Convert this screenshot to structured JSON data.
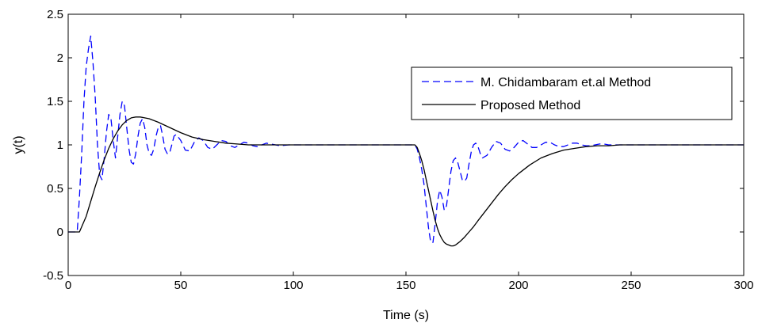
{
  "chart_data": {
    "type": "line",
    "title": "",
    "xlabel": "Time (s)",
    "ylabel": "y(t)",
    "xlim": [
      0,
      300
    ],
    "ylim": [
      -0.5,
      2.5
    ],
    "xticks": [
      0,
      50,
      100,
      150,
      200,
      250,
      300
    ],
    "yticks": [
      -0.5,
      0,
      0.5,
      1,
      1.5,
      2,
      2.5
    ],
    "xtick_labels": [
      "0",
      "50",
      "100",
      "150",
      "200",
      "250",
      "300"
    ],
    "ytick_labels": [
      "-0.5",
      "0",
      "0.5",
      "1",
      "1.5",
      "2",
      "2.5"
    ],
    "grid": false,
    "legend_position": "upper-right",
    "series": [
      {
        "name": "M. Chidambaram et.al Method",
        "color": "#0000ff",
        "style": "dashed",
        "x": [
          0,
          4,
          5,
          6,
          7,
          8,
          9,
          10,
          11,
          12,
          13,
          14,
          15,
          16,
          17,
          18,
          19,
          20,
          21,
          22,
          23,
          24,
          25,
          26,
          27,
          28,
          29,
          30,
          31,
          32,
          33,
          34,
          35,
          36,
          37,
          38,
          39,
          40,
          41,
          42,
          43,
          44,
          45,
          46,
          47,
          48,
          50,
          52,
          54,
          56,
          58,
          60,
          62,
          64,
          66,
          68,
          70,
          72,
          74,
          76,
          78,
          80,
          82,
          84,
          86,
          88,
          90,
          94,
          98,
          100,
          110,
          130,
          150,
          154,
          155,
          156,
          157,
          158,
          159,
          160,
          161,
          162,
          163,
          164,
          165,
          166,
          167,
          168,
          169,
          170,
          171,
          172,
          173,
          174,
          175,
          176,
          177,
          178,
          179,
          180,
          181,
          182,
          183,
          184,
          186,
          188,
          190,
          192,
          194,
          196,
          198,
          200,
          202,
          204,
          206,
          208,
          210,
          212,
          214,
          216,
          218,
          220,
          222,
          224,
          226,
          228,
          230,
          232,
          234,
          236,
          238,
          240,
          245,
          250,
          300
        ],
        "y": [
          0,
          0,
          0.4,
          0.9,
          1.5,
          1.9,
          2.1,
          2.25,
          1.95,
          1.55,
          1.0,
          0.65,
          0.6,
          0.85,
          1.15,
          1.35,
          1.3,
          1.05,
          0.85,
          1.1,
          1.35,
          1.5,
          1.45,
          1.2,
          0.95,
          0.8,
          0.78,
          0.9,
          1.1,
          1.25,
          1.3,
          1.2,
          1.0,
          0.9,
          0.88,
          0.95,
          1.1,
          1.2,
          1.22,
          1.1,
          0.95,
          0.9,
          0.9,
          1.0,
          1.1,
          1.12,
          1.05,
          0.94,
          0.93,
          1.03,
          1.08,
          1.05,
          0.97,
          0.95,
          1.0,
          1.05,
          1.04,
          0.99,
          0.97,
          1.0,
          1.03,
          1.02,
          0.99,
          0.98,
          1.0,
          1.02,
          1.01,
          0.99,
          1.0,
          1.0,
          1.0,
          1.0,
          1.0,
          1.0,
          0.95,
          0.85,
          0.72,
          0.55,
          0.3,
          0.05,
          -0.12,
          -0.12,
          0.1,
          0.35,
          0.48,
          0.4,
          0.25,
          0.3,
          0.5,
          0.7,
          0.82,
          0.85,
          0.8,
          0.7,
          0.6,
          0.58,
          0.62,
          0.78,
          0.92,
          1.0,
          1.02,
          0.98,
          0.9,
          0.85,
          0.88,
          0.97,
          1.04,
          1.02,
          0.95,
          0.93,
          0.97,
          1.03,
          1.05,
          1.01,
          0.97,
          0.97,
          1.0,
          1.03,
          1.03,
          1.0,
          0.98,
          0.98,
          1.0,
          1.02,
          1.02,
          1.0,
          0.99,
          0.99,
          1.0,
          1.01,
          1.01,
          1.0,
          1.0,
          1.0,
          1.0
        ]
      },
      {
        "name": "Proposed Method",
        "color": "#000000",
        "style": "solid",
        "x": [
          0,
          5,
          8,
          10,
          12,
          14,
          16,
          18,
          20,
          22,
          24,
          26,
          28,
          30,
          32,
          34,
          36,
          40,
          45,
          50,
          55,
          60,
          65,
          70,
          75,
          80,
          90,
          100,
          110,
          130,
          150,
          154,
          155,
          156,
          157,
          158,
          159,
          160,
          161,
          162,
          163,
          164,
          165,
          166,
          167,
          168,
          169,
          170,
          171,
          172,
          173,
          174,
          176,
          178,
          180,
          182,
          185,
          188,
          191,
          194,
          197,
          200,
          205,
          210,
          215,
          220,
          225,
          230,
          235,
          240,
          245,
          250,
          260,
          300
        ],
        "y": [
          0,
          0,
          0.18,
          0.35,
          0.52,
          0.68,
          0.83,
          0.96,
          1.07,
          1.16,
          1.23,
          1.28,
          1.31,
          1.32,
          1.32,
          1.31,
          1.3,
          1.26,
          1.2,
          1.14,
          1.09,
          1.06,
          1.04,
          1.02,
          1.01,
          1.0,
          1.0,
          1.0,
          1.0,
          1.0,
          1.0,
          1.0,
          0.97,
          0.9,
          0.82,
          0.72,
          0.6,
          0.48,
          0.36,
          0.24,
          0.13,
          0.04,
          -0.03,
          -0.08,
          -0.12,
          -0.14,
          -0.15,
          -0.16,
          -0.16,
          -0.15,
          -0.13,
          -0.11,
          -0.06,
          0.0,
          0.06,
          0.13,
          0.23,
          0.33,
          0.43,
          0.52,
          0.6,
          0.67,
          0.77,
          0.85,
          0.9,
          0.94,
          0.96,
          0.98,
          0.99,
          0.99,
          1.0,
          1.0,
          1.0,
          1.0
        ]
      }
    ]
  }
}
